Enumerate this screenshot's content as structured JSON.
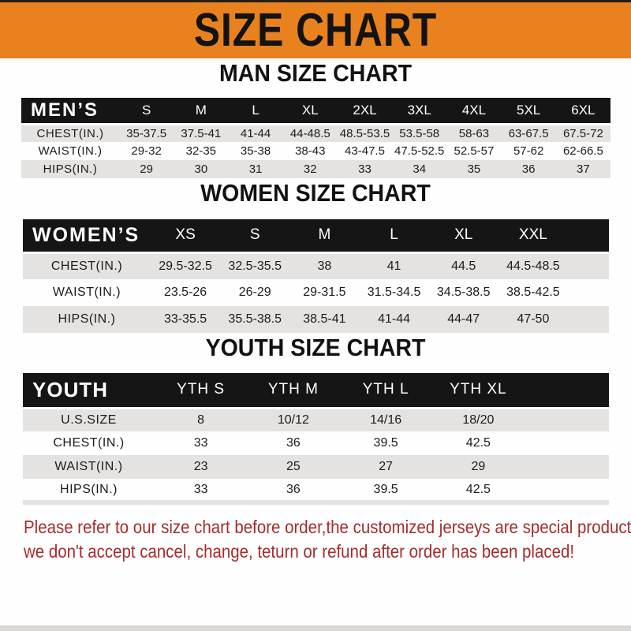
{
  "banner": {
    "title": "SIZE CHART"
  },
  "sections": [
    {
      "heading": "MAN SIZE CHART",
      "table": {
        "label": "MEN’S",
        "columns": [
          "S",
          "M",
          "L",
          "XL",
          "2XL",
          "3XL",
          "4XL",
          "5XL",
          "6XL"
        ],
        "has_filler": false,
        "rows": [
          {
            "label": "CHEST(IN.)",
            "values": [
              "35-37.5",
              "37.5-41",
              "41-44",
              "44-48.5",
              "48.5-53.5",
              "53.5-58",
              "58-63",
              "63-67.5",
              "67.5-72"
            ]
          },
          {
            "label": "WAIST(IN.)",
            "values": [
              "29-32",
              "32-35",
              "35-38",
              "38-43",
              "43-47.5",
              "47.5-52.5",
              "52.5-57",
              "57-62",
              "62-66.5"
            ]
          },
          {
            "label": "HIPS(IN.)",
            "values": [
              "29",
              "30",
              "31",
              "32",
              "33",
              "34",
              "35",
              "36",
              "37"
            ]
          }
        ]
      }
    },
    {
      "heading": "WOMEN SIZE CHART",
      "table": {
        "label": "WOMEN’S",
        "columns": [
          "XS",
          "S",
          "M",
          "L",
          "XL",
          "XXL"
        ],
        "has_filler": true,
        "rows": [
          {
            "label": "CHEST(IN.)",
            "values": [
              "29.5-32.5",
              "32.5-35.5",
              "38",
              "41",
              "44.5",
              "44.5-48.5"
            ]
          },
          {
            "label": "WAIST(IN.)",
            "values": [
              "23.5-26",
              "26-29",
              "29-31.5",
              "31.5-34.5",
              "34.5-38.5",
              "38.5-42.5"
            ]
          },
          {
            "label": "HIPS(IN.)",
            "values": [
              "33-35.5",
              "35.5-38.5",
              "38.5-41",
              "41-44",
              "44-47",
              "47-50"
            ]
          }
        ]
      }
    },
    {
      "heading": "YOUTH SIZE CHART",
      "table": {
        "label": "YOUTH",
        "columns": [
          "YTH S",
          "YTH M",
          "YTH L",
          "YTH XL"
        ],
        "has_filler": true,
        "rows": [
          {
            "label": "U.S.SIZE",
            "values": [
              "8",
              "10/12",
              "14/16",
              "18/20"
            ]
          },
          {
            "label": "CHEST(IN.)",
            "values": [
              "33",
              "36",
              "39.5",
              "42.5"
            ]
          },
          {
            "label": "WAIST(IN.)",
            "values": [
              "23",
              "25",
              "27",
              "29"
            ]
          },
          {
            "label": "HIPS(IN.)",
            "values": [
              "33",
              "36",
              "39.5",
              "42.5"
            ]
          }
        ]
      }
    }
  ],
  "disclaimer": {
    "line1": "Please refer to our size chart before order,the customized jerseys are special products,",
    "line2": "we don't accept cancel, change, teturn or refund after order has been placed!"
  },
  "colors": {
    "banner_bg": "#E8811E",
    "table_header_bg": "#151515",
    "row_stripe": "#E4E3E1",
    "disclaimer_red": "#A52C2C",
    "page_bg": "#FEFEFE"
  }
}
